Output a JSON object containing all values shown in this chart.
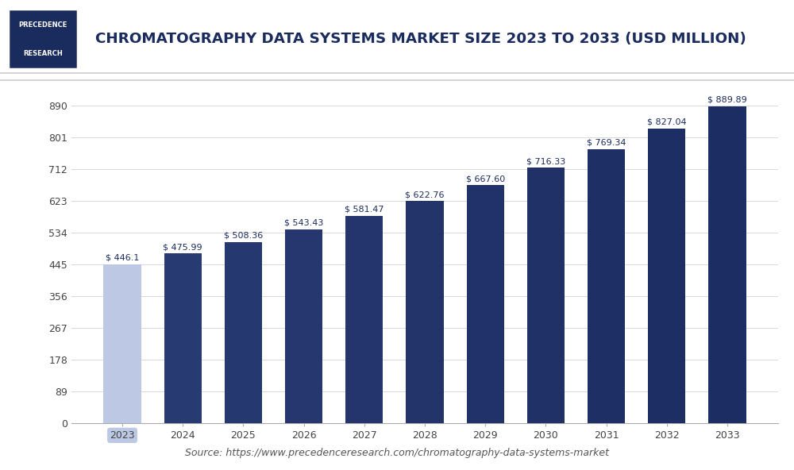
{
  "years": [
    "2023",
    "2024",
    "2025",
    "2026",
    "2027",
    "2028",
    "2029",
    "2030",
    "2031",
    "2032",
    "2033"
  ],
  "values": [
    446.1,
    475.99,
    508.36,
    543.43,
    581.47,
    622.76,
    667.6,
    716.33,
    769.34,
    827.04,
    889.89
  ],
  "labels": [
    "$ 446.1",
    "$ 475.99",
    "$ 508.36",
    "$ 543.43",
    "$ 581.47",
    "$ 622.76",
    "$ 667.60",
    "$ 716.33",
    "$ 769.34",
    "$ 827.04",
    "$ 889.89"
  ],
  "first_bar_color": "#bcc8e4",
  "dark_bar_color_start": "#2a3f7e",
  "dark_bar_color_end": "#1a2b5a",
  "title": "CHROMATOGRAPHY DATA SYSTEMS MARKET SIZE 2023 TO 2033 (USD MILLION)",
  "yticks": [
    0,
    89,
    178,
    267,
    356,
    445,
    534,
    623,
    712,
    801,
    890
  ],
  "ymax": 950,
  "bg_color": "#ffffff",
  "plot_bg_color": "#ffffff",
  "grid_color": "#d8d8d8",
  "source_text": "Source: https://www.precedenceresearch.com/chromatography-data-systems-market",
  "title_color": "#1a2b5e",
  "logo_border_color": "#1a2b5e",
  "logo_text_top": "PRECEDENCE",
  "logo_text_bot": "RESEARCH",
  "label_fontsize": 8.0,
  "tick_fontsize": 9.0,
  "source_fontsize": 9.0,
  "bar_width": 0.62
}
